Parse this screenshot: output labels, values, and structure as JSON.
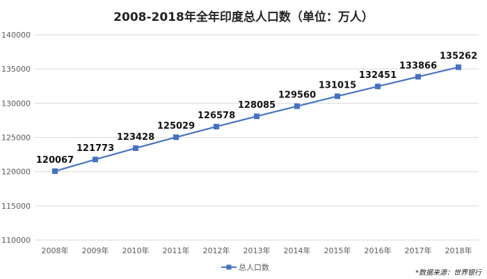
{
  "chart_data": {
    "type": "line",
    "title": "2008-2018年全年印度总人口数（单位：万人）",
    "xlabel": "",
    "ylabel": "",
    "categories": [
      "2008年",
      "2009年",
      "2010年",
      "2011年",
      "2012年",
      "2013年",
      "2014年",
      "2015年",
      "2016年",
      "2017年",
      "2018年"
    ],
    "series": [
      {
        "name": "总人口数",
        "values": [
          120067,
          121773,
          123428,
          125029,
          126578,
          128085,
          129560,
          131015,
          132451,
          133866,
          135262
        ]
      }
    ],
    "ylim": [
      110000,
      140000
    ],
    "yticks": [
      110000,
      115000,
      120000,
      125000,
      130000,
      135000,
      140000
    ],
    "grid": true,
    "legend_position": "bottom",
    "source": "*数据来源：世界银行",
    "colors": {
      "series": "#4472C4",
      "grid": "#D9D9D9",
      "text": "#595959"
    }
  }
}
